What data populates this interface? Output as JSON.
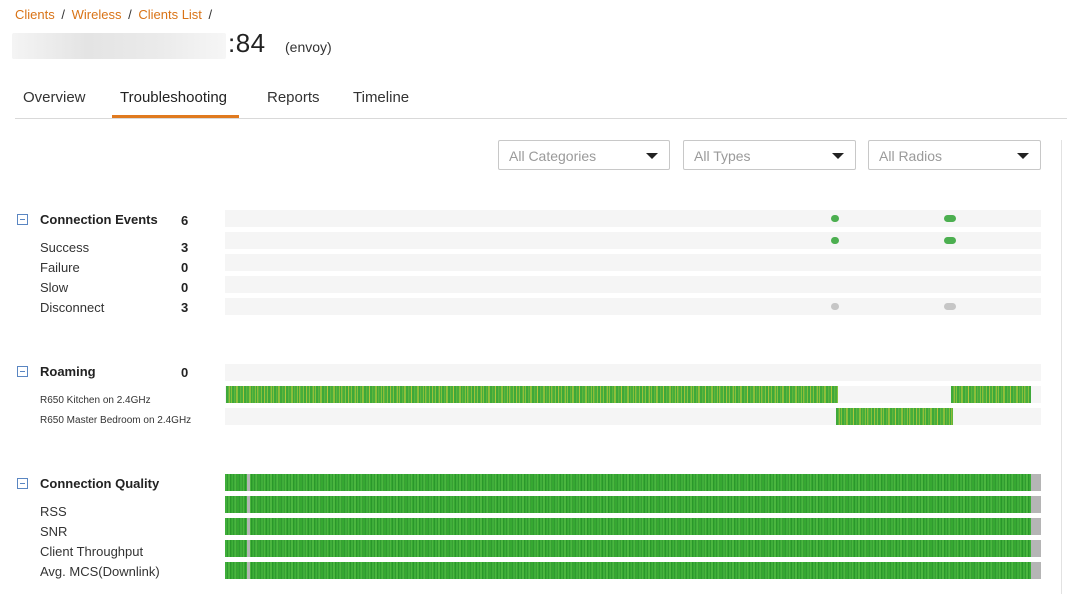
{
  "breadcrumb": {
    "items": [
      "Clients",
      "Wireless",
      "Clients List"
    ],
    "separator": "/"
  },
  "header": {
    "host_suffix": ":84",
    "device_name": "(envoy)"
  },
  "tabs": [
    {
      "label": "Overview",
      "active": false
    },
    {
      "label": "Troubleshooting",
      "active": true
    },
    {
      "label": "Reports",
      "active": false
    },
    {
      "label": "Timeline",
      "active": false
    }
  ],
  "filters": {
    "categories": {
      "selected": "All Categories"
    },
    "types": {
      "selected": "All Types"
    },
    "radios": {
      "selected": "All Radios"
    }
  },
  "connection_events": {
    "title": "Connection Events",
    "count": "6",
    "rows": [
      {
        "label": "Success",
        "count": "3"
      },
      {
        "label": "Failure",
        "count": "0"
      },
      {
        "label": "Slow",
        "count": "0"
      },
      {
        "label": "Disconnect",
        "count": "3"
      }
    ]
  },
  "roaming": {
    "title": "Roaming",
    "count": "0",
    "rows": [
      {
        "label": "R650 Kitchen on 2.4GHz"
      },
      {
        "label": "R650 Master Bedroom on 2.4GHz"
      }
    ]
  },
  "connection_quality": {
    "title": "Connection Quality",
    "rows": [
      {
        "label": "RSS"
      },
      {
        "label": "SNR"
      },
      {
        "label": "Client Throughput"
      },
      {
        "label": "Avg. MCS(Downlink)"
      }
    ]
  },
  "colors": {
    "accent": "#e07a1f",
    "breadcrumb_link": "#d97316",
    "good": "#4caf50",
    "neutral": "#c6c6c6",
    "collapse_icon": "#5a86c2"
  }
}
